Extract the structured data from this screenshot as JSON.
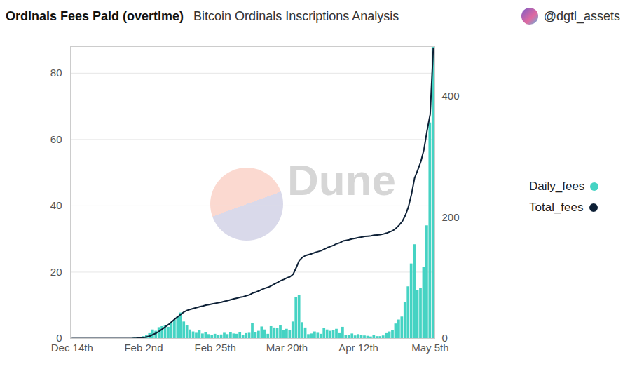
{
  "chart_data": {
    "type": "bar",
    "title": "Ordinals Fees Paid (overtime)",
    "subtitle": "Bitcoin Ordinals Inscriptions Analysis",
    "author": "@dgtl_assets",
    "watermark": "Dune",
    "categories": [
      "Dec 14th",
      null,
      null,
      null,
      null,
      null,
      null,
      null,
      null,
      null,
      null,
      null,
      null,
      null,
      null,
      null,
      null,
      null,
      null,
      null,
      null,
      null,
      null,
      "Feb 2nd",
      null,
      null,
      null,
      null,
      null,
      null,
      null,
      null,
      null,
      null,
      null,
      null,
      null,
      null,
      null,
      null,
      null,
      null,
      null,
      null,
      null,
      null,
      "Feb 25th",
      null,
      null,
      null,
      null,
      null,
      null,
      null,
      null,
      null,
      null,
      null,
      null,
      null,
      null,
      null,
      null,
      null,
      null,
      null,
      null,
      null,
      null,
      "Mar 20th",
      null,
      null,
      null,
      null,
      null,
      null,
      null,
      null,
      null,
      null,
      null,
      null,
      null,
      null,
      null,
      null,
      null,
      null,
      null,
      null,
      null,
      null,
      "Apr 12th",
      null,
      null,
      null,
      null,
      null,
      null,
      null,
      null,
      null,
      null,
      null,
      null,
      null,
      null,
      null,
      null,
      null,
      null,
      null,
      null,
      null,
      null,
      "May 5th",
      null
    ],
    "series": [
      {
        "name": "Daily_fees",
        "type": "bar",
        "color": "#45d3c3",
        "values": [
          0,
          0,
          0,
          0,
          0,
          0,
          0,
          0,
          0,
          0,
          0,
          0,
          0,
          0,
          0,
          0,
          0,
          0,
          0,
          0,
          0.1,
          0.2,
          0.4,
          0.6,
          1.0,
          1.5,
          2.6,
          2.2,
          3.3,
          3.6,
          4.0,
          3.4,
          4.8,
          5.5,
          6.5,
          7.7,
          5.0,
          3.8,
          2.6,
          2.0,
          1.6,
          2.4,
          1.4,
          1.8,
          1.2,
          1.0,
          1.3,
          0.9,
          1.1,
          1.6,
          1.2,
          1.9,
          1.4,
          1.3,
          1.7,
          1.0,
          1.5,
          1.6,
          4.5,
          1.8,
          2.2,
          3.5,
          2.6,
          1.3,
          3.6,
          3.2,
          3.1,
          3.8,
          2.4,
          2.8,
          2.5,
          5.0,
          12.3,
          13.1,
          4.8,
          3.2,
          1.2,
          1.4,
          2.0,
          1.6,
          1.3,
          3.0,
          2.6,
          2.2,
          2.5,
          2.8,
          1.5,
          3.4,
          0.9,
          1.0,
          1.4,
          0.8,
          1.2,
          1.0,
          0.8,
          0.7,
          0.5,
          0.9,
          0.6,
          0.6,
          0.8,
          1.5,
          2.0,
          2.4,
          4.4,
          5.6,
          6.5,
          11.0,
          15.6,
          22.5,
          28.3,
          14.5,
          15.2,
          21.5,
          34.0,
          65.0,
          88.0
        ]
      },
      {
        "name": "Total_fees",
        "type": "line",
        "axis": "y2",
        "color": "#0d2036",
        "values": [
          0,
          0,
          0,
          0,
          0,
          0,
          0,
          0,
          0,
          0,
          0,
          0,
          0,
          0,
          0,
          0,
          0,
          0,
          0,
          0,
          0.2,
          0.5,
          1,
          1.6,
          2.6,
          4,
          6.5,
          8.7,
          12,
          15.5,
          19.5,
          23,
          27.5,
          32,
          36,
          40,
          44,
          46.5,
          48,
          49.5,
          51,
          52.5,
          53.5,
          55,
          56,
          57,
          58,
          59,
          60,
          61.5,
          62.5,
          64,
          65.5,
          66.5,
          68,
          69,
          70.5,
          72,
          75,
          76.5,
          78.5,
          81,
          83,
          84.5,
          87,
          90,
          92.5,
          95.5,
          97.5,
          100,
          102,
          106,
          117,
          129,
          134,
          137,
          138.5,
          140,
          142,
          143.5,
          145,
          147.5,
          150,
          152,
          154,
          156.5,
          158,
          161,
          162,
          163,
          164.5,
          165.5,
          166.5,
          167.5,
          168.5,
          169,
          169.5,
          170.5,
          171,
          171.5,
          172.5,
          174,
          176,
          178,
          182,
          187,
          193,
          203,
          217,
          238,
          265,
          278,
          292,
          312,
          343,
          370,
          479
        ]
      }
    ],
    "ylim": [
      0,
      88
    ],
    "yticks": [
      0,
      20,
      40,
      60,
      80
    ],
    "y2lim": [
      0,
      482
    ],
    "y2ticks": [
      0,
      200,
      400
    ],
    "grid": true,
    "legend": "right"
  }
}
